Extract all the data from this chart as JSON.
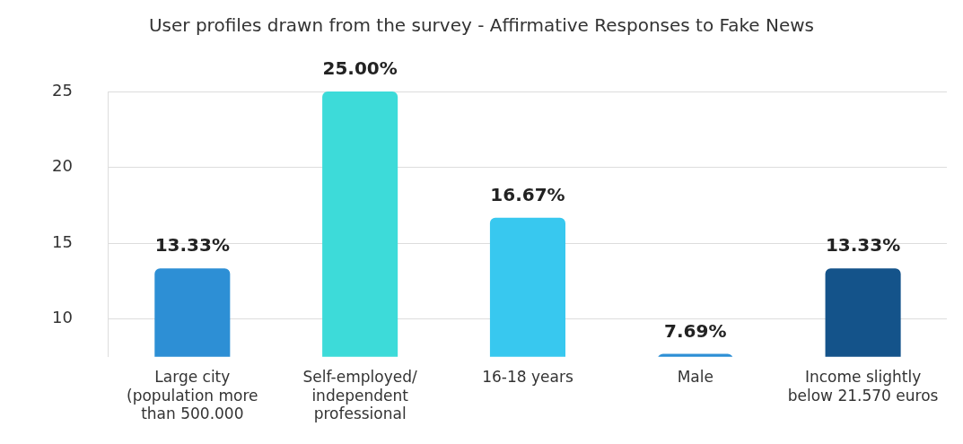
{
  "chart_data": {
    "type": "bar",
    "title": "User profiles drawn from the survey - Affirmative Responses to Fake News",
    "categories": [
      "Large city (population more than 500.000",
      "Self-employed/ independent professional",
      "16-18 years",
      "Male",
      "Income slightly below 21.570 euros"
    ],
    "values": [
      13.33,
      25,
      16.67,
      7.69,
      13.33
    ],
    "colors": [
      "#2d8fd5",
      "#3ddbd9",
      "#38c8ef",
      "#2d8fd5",
      "#14538a"
    ],
    "value_labels": [
      "13.33%",
      "25.00%",
      "16.67%",
      "7.69%",
      "13.33%"
    ],
    "ylim": [
      7.5,
      25
    ],
    "yticks": [
      10,
      15,
      20,
      25
    ],
    "grid": "y",
    "legend": false
  }
}
